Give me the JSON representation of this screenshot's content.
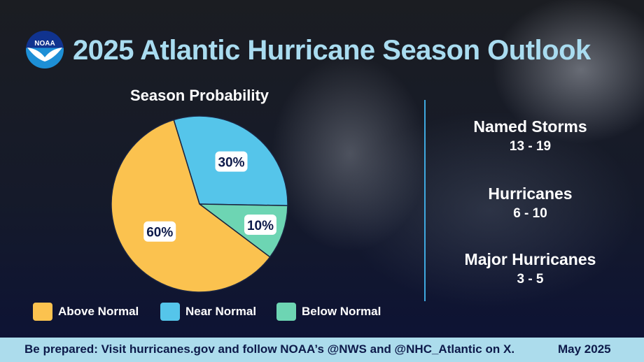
{
  "header": {
    "title": "2025 Atlantic Hurricane Season Outlook",
    "logo_text": "NOAA"
  },
  "chart_data": {
    "type": "pie",
    "title": "Season Probability",
    "categories": [
      "Near Normal",
      "Below Normal",
      "Above Normal"
    ],
    "values": [
      30,
      10,
      60
    ],
    "labels": [
      "30%",
      "10%",
      "60%"
    ],
    "colors": [
      "#55c5ea",
      "#6dd5b3",
      "#fbc24f"
    ],
    "legend_order": [
      {
        "name": "Above Normal",
        "color": "#fbc24f"
      },
      {
        "name": "Near Normal",
        "color": "#55c5ea"
      },
      {
        "name": "Below Normal",
        "color": "#6dd5b3"
      }
    ],
    "legend_placement": "bottom"
  },
  "stats": [
    {
      "label": "Named Storms",
      "value": "13 - 19"
    },
    {
      "label": "Hurricanes",
      "value": "6 - 10"
    },
    {
      "label": "Major Hurricanes",
      "value": "3 - 5"
    }
  ],
  "footer": {
    "message": "Be prepared: Visit hurricanes.gov and follow NOAA’s @NWS and @NHC_Atlantic on X.",
    "date": "May 2025"
  }
}
